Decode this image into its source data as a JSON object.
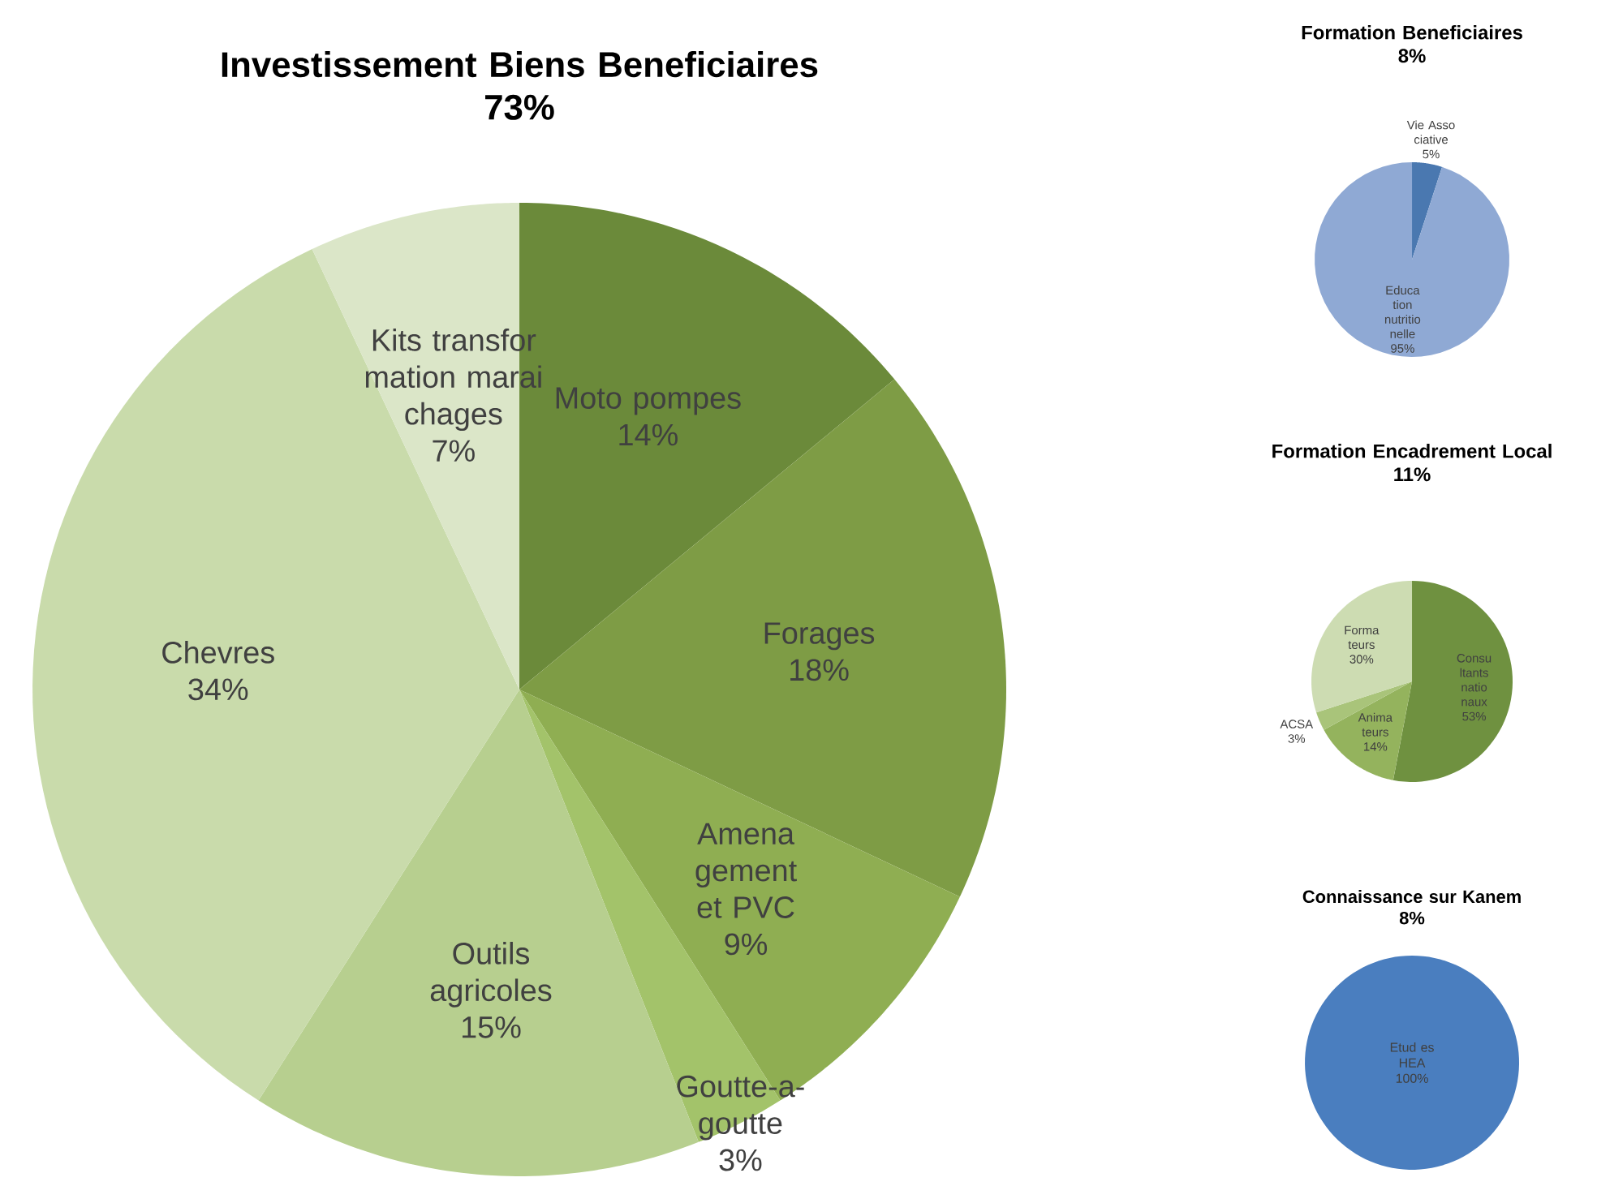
{
  "chart_data": [
    {
      "type": "pie",
      "title": "Investissement Biens Beneficiaires",
      "subtitle": "73%",
      "categories": [
        "Moto pompes",
        "Forages",
        "Amena gement et PVC",
        "Goutte-a- goutte",
        "Outils agricoles",
        "Chevres",
        "Kits transfor mation marai chages"
      ],
      "values": [
        14,
        18,
        9,
        3,
        15,
        34,
        7
      ],
      "value_labels": [
        "14%",
        "18%",
        "9%",
        "3%",
        "15%",
        "34%",
        "7%"
      ],
      "colors": [
        "#6b8a3a",
        "#7e9c45",
        "#8fae52",
        "#a3c36a",
        "#b7cf8f",
        "#c9dbab",
        "#dbe6c8"
      ]
    },
    {
      "type": "pie",
      "title": "Formation Beneficiaires",
      "subtitle": "8%",
      "categories": [
        "Vie Asso ciative",
        "Educa tion nutritio nelle"
      ],
      "values": [
        5,
        95
      ],
      "value_labels": [
        "5%",
        "95%"
      ],
      "colors": [
        "#4a78b0",
        "#8fa9d4"
      ]
    },
    {
      "type": "pie",
      "title": "Formation Encadrement Local",
      "subtitle": "11%",
      "categories": [
        "Consu ltants natio naux",
        "Anima teurs",
        "ACSA",
        "Forma teurs"
      ],
      "values": [
        53,
        14,
        3,
        30
      ],
      "value_labels": [
        "53%",
        "14%",
        "3%",
        "30%"
      ],
      "colors": [
        "#6f9140",
        "#94b35d",
        "#a9c47a",
        "#cddcb2"
      ]
    },
    {
      "type": "pie",
      "title": "Connaissance sur Kanem",
      "subtitle": "8%",
      "categories": [
        "Etud es HEA"
      ],
      "values": [
        100
      ],
      "value_labels": [
        "100%"
      ],
      "colors": [
        "#4a7ebf"
      ]
    }
  ]
}
